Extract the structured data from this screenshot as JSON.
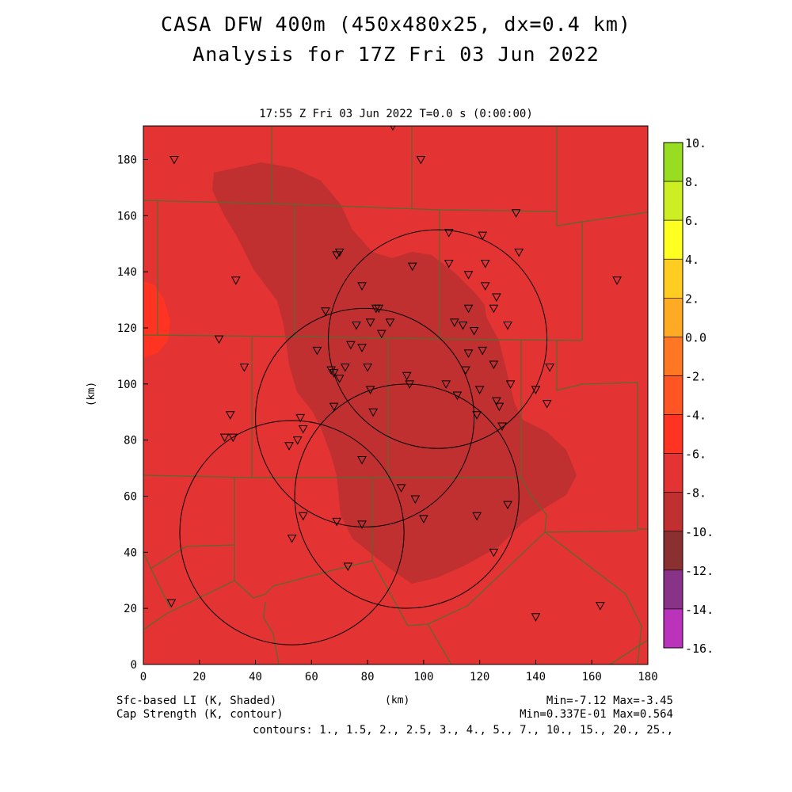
{
  "header": {
    "title_line1": "CASA DFW 400m (450x480x25, dx=0.4 km)",
    "title_line2": "Analysis for 17Z Fri 03 Jun 2022",
    "valid_time": "17:55 Z Fri 03 Jun 2022   T=0.0 s (0:00:00)"
  },
  "axes": {
    "x_label": "(km)",
    "y_label": "(km)",
    "x_ticks": [
      0,
      20,
      40,
      60,
      80,
      100,
      120,
      140,
      160,
      180
    ],
    "y_ticks": [
      0,
      20,
      40,
      60,
      80,
      100,
      120,
      140,
      160,
      180
    ],
    "x_range": [
      0,
      180
    ],
    "y_range": [
      0,
      192
    ]
  },
  "colorbar": {
    "labels": [
      "10.",
      "8.",
      "6.",
      "4.",
      "2.",
      "0.0",
      "-2.",
      "-4.",
      "-6.",
      "-8.",
      "-10.",
      "-12.",
      "-14.",
      "-16."
    ],
    "colors": [
      "#99dd22",
      "#ccee22",
      "#ffff22",
      "#ffcc22",
      "#ffaa22",
      "#ff7722",
      "#ff5522",
      "#ff3322",
      "#e33333",
      "#c03030",
      "#8b3030",
      "#883388",
      "#bb33bb",
      "#dd44dd"
    ]
  },
  "field": {
    "background_color": "#e33333",
    "region_color": "#c03030",
    "warm_pocket_color": "#ff3322",
    "county_line_color": "#556b2f"
  },
  "radars": [
    {
      "x": 105,
      "y": 116,
      "r_km": 39
    },
    {
      "x": 79,
      "y": 88,
      "r_km": 39
    },
    {
      "x": 53,
      "y": 47,
      "r_km": 40
    },
    {
      "x": 94,
      "y": 60,
      "r_km": 40
    }
  ],
  "stations": [
    [
      11,
      180
    ],
    [
      99,
      180
    ],
    [
      89,
      192
    ],
    [
      33,
      137
    ],
    [
      69,
      146
    ],
    [
      70,
      147
    ],
    [
      133,
      161
    ],
    [
      134,
      147
    ],
    [
      169,
      137
    ],
    [
      109,
      154
    ],
    [
      121,
      153
    ],
    [
      78,
      135
    ],
    [
      96,
      142
    ],
    [
      109,
      143
    ],
    [
      116,
      139
    ],
    [
      122,
      135
    ],
    [
      122,
      143
    ],
    [
      126,
      131
    ],
    [
      125,
      127
    ],
    [
      116,
      127
    ],
    [
      83,
      127
    ],
    [
      84,
      127
    ],
    [
      65,
      126
    ],
    [
      76,
      121
    ],
    [
      81,
      122
    ],
    [
      88,
      122
    ],
    [
      111,
      122
    ],
    [
      114,
      121
    ],
    [
      118,
      119
    ],
    [
      130,
      121
    ],
    [
      74,
      114
    ],
    [
      78,
      113
    ],
    [
      85,
      118
    ],
    [
      62,
      112
    ],
    [
      116,
      111
    ],
    [
      121,
      112
    ],
    [
      27,
      116
    ],
    [
      36,
      106
    ],
    [
      67,
      105
    ],
    [
      68,
      104
    ],
    [
      70,
      102
    ],
    [
      72,
      106
    ],
    [
      80,
      106
    ],
    [
      94,
      103
    ],
    [
      115,
      105
    ],
    [
      125,
      107
    ],
    [
      145,
      106
    ],
    [
      81,
      98
    ],
    [
      95,
      100
    ],
    [
      108,
      100
    ],
    [
      120,
      98
    ],
    [
      140,
      98
    ],
    [
      144,
      93
    ],
    [
      31,
      89
    ],
    [
      29,
      81
    ],
    [
      32,
      81
    ],
    [
      56,
      88
    ],
    [
      57,
      84
    ],
    [
      55,
      80
    ],
    [
      52,
      78
    ],
    [
      68,
      92
    ],
    [
      82,
      90
    ],
    [
      112,
      96
    ],
    [
      126,
      94
    ],
    [
      127,
      92
    ],
    [
      128,
      85
    ],
    [
      119,
      89
    ],
    [
      131,
      100
    ],
    [
      78,
      73
    ],
    [
      92,
      63
    ],
    [
      97,
      59
    ],
    [
      100,
      52
    ],
    [
      119,
      53
    ],
    [
      130,
      57
    ],
    [
      125,
      40
    ],
    [
      57,
      53
    ],
    [
      69,
      51
    ],
    [
      78,
      50
    ],
    [
      53,
      45
    ],
    [
      73,
      35
    ],
    [
      10,
      22
    ],
    [
      140,
      17
    ],
    [
      163,
      21
    ]
  ],
  "footer": {
    "left_line1": "Sfc-based LI (K, Shaded)",
    "left_line2": "Cap Strength (K, contour)",
    "center": "(km)",
    "right_line1": "Min=-7.12 Max=-3.45",
    "right_line2": "Min=0.337E-01 Max=0.564",
    "contours": "contours: 1., 1.5, 2., 2.5, 3., 4., 5., 7., 10., 15., 20., 25.,"
  }
}
